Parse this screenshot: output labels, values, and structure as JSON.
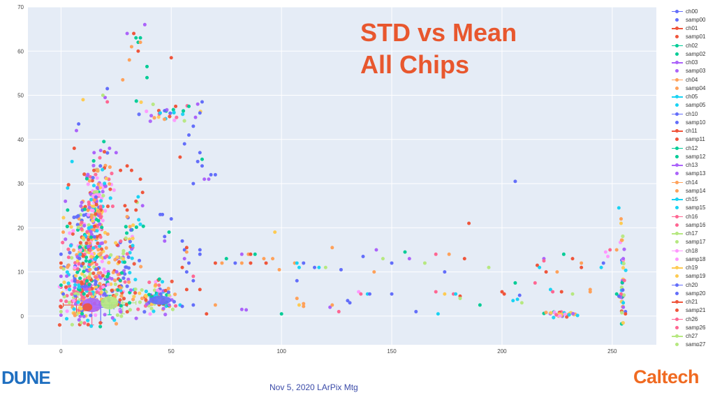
{
  "slide": {
    "title_line1": "STD vs Mean",
    "title_line2": "All Chips",
    "footer": "Nov 5, 2020 LArPix Mtg",
    "logo_left": "DUNE",
    "logo_right": "Caltech"
  },
  "colors": {
    "title": "#e8572e",
    "footer": "#3a4aa8",
    "caltech": "#f06a21",
    "plot_bg": "#e5ecf6",
    "dune_blue": "#1f6fc0",
    "dune_light": "#7fb8e6"
  },
  "chart_data": {
    "type": "scatter",
    "title": "",
    "xlabel": "",
    "ylabel": "",
    "xlim": [
      -15,
      270
    ],
    "ylim": [
      -6.5,
      70
    ],
    "xticks": [
      0,
      50,
      100,
      150,
      200,
      250
    ],
    "yticks": [
      0,
      10,
      20,
      30,
      40,
      50,
      60,
      70
    ],
    "grid": true,
    "legend_position": "right",
    "palette": [
      "#636efa",
      "#ef553b",
      "#00cc96",
      "#ab63fa",
      "#ffa15a",
      "#19d3f3",
      "#ff6692",
      "#b6e880",
      "#ff97ff",
      "#fecb52"
    ],
    "legend": [
      {
        "label": "ch00",
        "kind": "line",
        "color": "#636efa"
      },
      {
        "label": "samp00",
        "kind": "marker",
        "color": "#636efa"
      },
      {
        "label": "ch01",
        "kind": "line",
        "color": "#ef553b"
      },
      {
        "label": "samp01",
        "kind": "marker",
        "color": "#ef553b"
      },
      {
        "label": "ch02",
        "kind": "line",
        "color": "#00cc96"
      },
      {
        "label": "samp02",
        "kind": "marker",
        "color": "#00cc96"
      },
      {
        "label": "ch03",
        "kind": "line",
        "color": "#ab63fa"
      },
      {
        "label": "samp03",
        "kind": "marker",
        "color": "#ab63fa"
      },
      {
        "label": "ch04",
        "kind": "line",
        "color": "#ffa15a"
      },
      {
        "label": "samp04",
        "kind": "marker",
        "color": "#ffa15a"
      },
      {
        "label": "ch05",
        "kind": "line",
        "color": "#19d3f3"
      },
      {
        "label": "samp05",
        "kind": "marker",
        "color": "#19d3f3"
      },
      {
        "label": "ch10",
        "kind": "line",
        "color": "#636efa"
      },
      {
        "label": "samp10",
        "kind": "marker",
        "color": "#636efa"
      },
      {
        "label": "ch11",
        "kind": "line",
        "color": "#ef553b"
      },
      {
        "label": "samp11",
        "kind": "marker",
        "color": "#ef553b"
      },
      {
        "label": "ch12",
        "kind": "line",
        "color": "#00cc96"
      },
      {
        "label": "samp12",
        "kind": "marker",
        "color": "#00cc96"
      },
      {
        "label": "ch13",
        "kind": "line",
        "color": "#ab63fa"
      },
      {
        "label": "samp13",
        "kind": "marker",
        "color": "#ab63fa"
      },
      {
        "label": "ch14",
        "kind": "line",
        "color": "#ffa15a"
      },
      {
        "label": "samp14",
        "kind": "marker",
        "color": "#ffa15a"
      },
      {
        "label": "ch15",
        "kind": "line",
        "color": "#19d3f3"
      },
      {
        "label": "samp15",
        "kind": "marker",
        "color": "#19d3f3"
      },
      {
        "label": "ch16",
        "kind": "line",
        "color": "#ff6692"
      },
      {
        "label": "samp16",
        "kind": "marker",
        "color": "#ff6692"
      },
      {
        "label": "ch17",
        "kind": "line",
        "color": "#b6e880"
      },
      {
        "label": "samp17",
        "kind": "marker",
        "color": "#b6e880"
      },
      {
        "label": "ch18",
        "kind": "line",
        "color": "#ff97ff"
      },
      {
        "label": "samp18",
        "kind": "marker",
        "color": "#ff97ff"
      },
      {
        "label": "ch19",
        "kind": "line",
        "color": "#fecb52"
      },
      {
        "label": "samp19",
        "kind": "marker",
        "color": "#fecb52"
      },
      {
        "label": "ch20",
        "kind": "line",
        "color": "#636efa"
      },
      {
        "label": "samp20",
        "kind": "marker",
        "color": "#636efa"
      },
      {
        "label": "ch21",
        "kind": "line",
        "color": "#ef553b"
      },
      {
        "label": "samp21",
        "kind": "marker",
        "color": "#ef553b"
      },
      {
        "label": "ch26",
        "kind": "line",
        "color": "#ff6692"
      },
      {
        "label": "samp26",
        "kind": "marker",
        "color": "#ff6692"
      },
      {
        "label": "ch27",
        "kind": "line",
        "color": "#b6e880"
      },
      {
        "label": "samp27",
        "kind": "marker",
        "color": "#b6e880"
      }
    ],
    "points": [
      [
        38,
        66,
        3
      ],
      [
        30,
        64,
        3
      ],
      [
        33,
        64,
        1
      ],
      [
        34,
        63,
        2
      ],
      [
        35,
        62,
        2
      ],
      [
        36,
        63,
        2
      ],
      [
        35,
        60,
        1
      ],
      [
        32,
        61,
        4
      ],
      [
        36,
        62,
        4
      ],
      [
        50,
        58.5,
        1
      ],
      [
        31,
        58,
        4
      ],
      [
        39,
        56.5,
        2
      ],
      [
        39,
        54,
        2
      ],
      [
        28,
        53.5,
        4
      ],
      [
        21,
        51.5,
        0
      ],
      [
        20,
        49.5,
        3
      ],
      [
        21,
        48.5,
        6
      ],
      [
        19,
        50,
        7
      ],
      [
        10,
        49,
        9
      ],
      [
        45,
        46,
        5
      ],
      [
        47,
        46.5,
        0
      ],
      [
        52,
        47.5,
        1
      ],
      [
        58,
        47.5,
        2
      ],
      [
        62,
        48,
        3
      ],
      [
        64,
        48.5,
        0
      ],
      [
        63,
        46,
        0
      ],
      [
        61,
        45,
        3
      ],
      [
        60,
        43,
        0
      ],
      [
        58,
        41,
        0
      ],
      [
        56,
        39,
        0
      ],
      [
        54,
        36,
        1
      ],
      [
        62,
        35,
        0
      ],
      [
        64,
        35.5,
        2
      ],
      [
        64,
        34,
        0
      ],
      [
        63,
        37,
        0
      ],
      [
        68,
        32,
        0
      ],
      [
        70,
        32,
        0
      ],
      [
        65,
        31,
        3
      ],
      [
        60,
        30,
        0
      ],
      [
        67,
        31,
        3
      ],
      [
        8,
        43.5,
        0
      ],
      [
        7,
        42,
        3
      ],
      [
        6,
        38,
        1
      ],
      [
        5,
        35,
        5
      ],
      [
        15,
        37,
        3
      ],
      [
        18,
        37.5,
        3
      ],
      [
        22,
        38,
        3
      ],
      [
        25,
        37,
        3
      ],
      [
        27,
        33,
        1
      ],
      [
        30,
        34,
        1
      ],
      [
        32,
        33,
        1
      ],
      [
        36,
        31,
        1
      ],
      [
        37,
        28,
        1
      ],
      [
        35,
        27,
        5
      ],
      [
        34,
        26,
        1
      ],
      [
        37,
        25,
        3
      ],
      [
        29,
        25,
        1
      ],
      [
        30,
        24,
        1
      ],
      [
        34,
        24,
        1
      ],
      [
        3,
        29,
        5
      ],
      [
        2,
        26,
        3
      ],
      [
        3,
        24,
        2
      ],
      [
        4,
        21,
        1
      ],
      [
        1,
        19,
        4
      ],
      [
        0,
        14,
        0
      ],
      [
        0,
        12,
        1
      ],
      [
        0,
        11,
        4
      ],
      [
        0,
        9,
        3
      ],
      [
        0,
        7,
        2
      ],
      [
        1,
        5,
        0
      ],
      [
        0,
        3.5,
        6
      ],
      [
        0,
        2,
        1
      ],
      [
        0,
        1,
        7
      ],
      [
        0,
        0.2,
        3
      ],
      [
        45,
        23,
        0
      ],
      [
        46,
        23,
        0
      ],
      [
        50,
        22,
        0
      ],
      [
        47,
        18,
        0
      ],
      [
        49,
        19,
        2
      ],
      [
        55,
        17,
        0
      ],
      [
        56,
        15,
        0
      ],
      [
        56,
        13,
        3
      ],
      [
        47,
        17,
        3
      ],
      [
        58,
        12,
        0
      ],
      [
        55,
        11,
        1
      ],
      [
        57,
        10,
        0
      ],
      [
        60,
        9,
        6
      ],
      [
        60,
        8,
        0
      ],
      [
        57,
        6,
        1
      ],
      [
        63,
        6,
        1
      ],
      [
        57,
        15.5,
        1
      ],
      [
        57,
        14.5,
        4
      ],
      [
        63,
        15,
        0
      ],
      [
        63,
        14,
        0
      ],
      [
        60,
        2.5,
        0
      ],
      [
        54,
        2.5,
        5
      ],
      [
        52,
        2.3,
        6
      ],
      [
        55,
        2.2,
        0
      ],
      [
        66,
        0.5,
        1
      ],
      [
        70,
        12,
        1
      ],
      [
        70,
        2.5,
        4
      ],
      [
        73,
        12,
        4
      ],
      [
        75,
        13,
        2
      ],
      [
        79,
        12,
        0
      ],
      [
        82,
        12,
        4
      ],
      [
        82,
        14,
        3
      ],
      [
        82,
        1.5,
        3
      ],
      [
        84,
        1.4,
        3
      ],
      [
        85,
        14,
        4
      ],
      [
        86,
        14,
        1
      ],
      [
        86,
        12,
        1
      ],
      [
        88,
        14,
        2
      ],
      [
        92,
        13,
        4
      ],
      [
        93,
        12,
        1
      ],
      [
        96,
        13,
        4
      ],
      [
        97,
        19,
        9
      ],
      [
        99,
        10.5,
        4
      ],
      [
        100,
        0.5,
        2
      ],
      [
        106,
        12,
        4
      ],
      [
        107,
        12,
        5
      ],
      [
        107,
        8,
        0
      ],
      [
        107,
        4,
        4
      ],
      [
        108,
        11,
        5
      ],
      [
        108,
        2.5,
        9
      ],
      [
        110,
        12,
        0
      ],
      [
        110,
        2.8,
        4
      ],
      [
        110,
        2.2,
        4
      ],
      [
        115,
        11,
        0
      ],
      [
        117,
        11,
        5
      ],
      [
        120,
        11,
        7
      ],
      [
        122,
        2,
        3
      ],
      [
        123,
        2.5,
        4
      ],
      [
        123,
        15.5,
        4
      ],
      [
        126,
        1,
        6
      ],
      [
        127,
        10.5,
        0
      ],
      [
        130,
        3.5,
        0
      ],
      [
        131,
        3,
        0
      ],
      [
        135,
        5.5,
        8
      ],
      [
        136,
        5,
        6
      ],
      [
        137,
        13.5,
        0
      ],
      [
        139,
        5,
        5
      ],
      [
        140,
        5,
        0
      ],
      [
        142,
        10,
        4
      ],
      [
        143,
        15,
        3
      ],
      [
        146,
        13,
        7
      ],
      [
        150,
        5,
        0
      ],
      [
        150,
        12,
        0
      ],
      [
        156,
        14.5,
        2
      ],
      [
        158,
        13,
        3
      ],
      [
        161,
        1,
        0
      ],
      [
        165,
        12,
        7
      ],
      [
        170,
        5.5,
        6
      ],
      [
        170,
        14,
        6
      ],
      [
        171,
        0.5,
        5
      ],
      [
        174,
        10,
        0
      ],
      [
        174,
        5,
        9
      ],
      [
        176,
        14,
        4
      ],
      [
        178,
        5,
        6
      ],
      [
        179,
        5,
        5
      ],
      [
        181,
        4.5,
        1
      ],
      [
        181,
        4,
        7
      ],
      [
        183,
        13,
        1
      ],
      [
        185,
        21,
        1
      ],
      [
        190,
        2.5,
        2
      ],
      [
        194,
        11,
        7
      ],
      [
        200,
        5.5,
        1
      ],
      [
        201,
        5,
        1
      ],
      [
        206,
        30.5,
        0
      ],
      [
        206,
        7.5,
        2
      ],
      [
        205,
        3.5,
        5
      ],
      [
        207,
        3.8,
        5
      ],
      [
        208,
        4.7,
        0
      ],
      [
        209,
        3,
        7
      ],
      [
        215,
        7.5,
        6
      ],
      [
        216,
        11.5,
        1
      ],
      [
        217,
        11,
        5
      ],
      [
        219,
        13,
        3
      ],
      [
        219,
        12.5,
        6
      ],
      [
        220,
        10,
        1
      ],
      [
        222,
        6,
        5
      ],
      [
        223,
        5.5,
        6
      ],
      [
        225,
        10,
        4
      ],
      [
        227,
        5.5,
        1
      ],
      [
        228,
        14,
        2
      ],
      [
        232,
        5,
        7
      ],
      [
        232,
        13,
        1
      ],
      [
        236,
        11,
        1
      ],
      [
        236,
        12,
        4
      ],
      [
        240,
        6,
        4
      ],
      [
        240,
        5.5,
        4
      ],
      [
        245,
        11,
        5
      ],
      [
        246,
        12,
        0
      ],
      [
        247,
        14.5,
        8
      ],
      [
        248,
        13.5,
        8
      ],
      [
        249,
        15,
        6
      ],
      [
        252,
        15,
        4
      ],
      [
        253,
        24.5,
        5
      ],
      [
        254,
        22,
        4
      ],
      [
        254,
        21,
        9
      ],
      [
        255,
        13,
        3
      ],
      [
        254,
        5,
        6
      ],
      [
        253,
        4.5,
        0
      ],
      [
        252,
        5,
        2
      ],
      [
        255,
        3,
        5
      ],
      [
        255,
        2,
        3
      ],
      [
        256,
        1,
        0
      ],
      [
        256,
        0.5,
        1
      ]
    ],
    "clusters": [
      {
        "x": 10,
        "y": 5,
        "n": 170,
        "sx": 4.5,
        "sy": 4
      },
      {
        "x": 12,
        "y": 13,
        "n": 130,
        "sx": 3.5,
        "sy": 5.5
      },
      {
        "x": 15,
        "y": 22,
        "n": 140,
        "sx": 3,
        "sy": 5
      },
      {
        "x": 18,
        "y": 30,
        "n": 55,
        "sx": 3.5,
        "sy": 3.5
      },
      {
        "x": 21,
        "y": 8,
        "n": 80,
        "sx": 5,
        "sy": 4
      },
      {
        "x": 27,
        "y": 5,
        "n": 45,
        "sx": 4,
        "sy": 3
      },
      {
        "x": 30,
        "y": 12,
        "n": 30,
        "sx": 3,
        "sy": 3
      },
      {
        "x": 33,
        "y": 19,
        "n": 18,
        "sx": 3,
        "sy": 2.5
      },
      {
        "x": 45,
        "y": 4.5,
        "n": 70,
        "sx": 3,
        "sy": 2
      },
      {
        "x": 41,
        "y": 3.8,
        "n": 35,
        "sx": 3,
        "sy": 1.2
      },
      {
        "x": 254.5,
        "y": 8,
        "n": 35,
        "sx": 0.6,
        "sy": 5
      },
      {
        "x": 228,
        "y": 0.4,
        "n": 30,
        "sx": 4,
        "sy": 0.25
      },
      {
        "x": 47,
        "y": 46.5,
        "n": 28,
        "sx": 6,
        "sy": 1.3
      },
      {
        "x": 6,
        "y": 16,
        "n": 40,
        "sx": 2.5,
        "sy": 7
      }
    ],
    "error_bars": [
      {
        "x": 7,
        "y": 2.5,
        "xerr": 6,
        "yerr": 1.8,
        "color": "#ef553b"
      },
      {
        "x": 14,
        "y": 2.5,
        "xerr": 9,
        "yerr": 4.5,
        "color": "#ff6692"
      },
      {
        "x": 22,
        "y": 2.5,
        "xerr": 8,
        "yerr": 2.2,
        "color": "#00cc96"
      },
      {
        "x": 28,
        "y": 3,
        "xerr": 6,
        "yerr": 2.5,
        "color": "#b6e880"
      },
      {
        "x": 18,
        "y": 2,
        "xerr": 6,
        "yerr": 3.5,
        "color": "#636efa"
      }
    ],
    "blobs": [
      {
        "x": 14,
        "y": 2.5,
        "rx": 4.5,
        "ry": 1.6,
        "color": "#ab63fa"
      },
      {
        "x": 22,
        "y": 3,
        "rx": 4,
        "ry": 1.5,
        "color": "#b6e880"
      },
      {
        "x": 45,
        "y": 3.6,
        "rx": 5,
        "ry": 1,
        "color": "#636efa"
      },
      {
        "x": 12,
        "y": 2,
        "rx": 2.2,
        "ry": 0.9,
        "color": "#ef553b"
      }
    ]
  }
}
